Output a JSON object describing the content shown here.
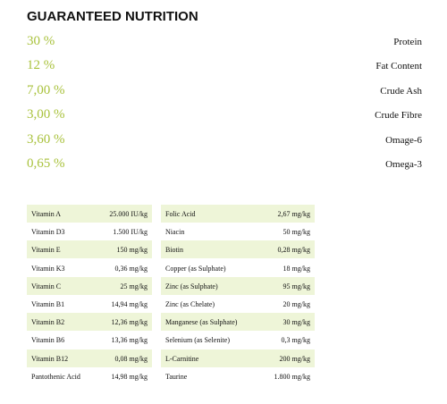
{
  "header": {
    "title": "GUARANTEED NUTRITION"
  },
  "nutrients": [
    {
      "value": "30 %",
      "label": "Protein"
    },
    {
      "value": "12 %",
      "label": "Fat Content"
    },
    {
      "value": "7,00 %",
      "label": "Crude Ash"
    },
    {
      "value": "3,00 %",
      "label": "Crude Fibre"
    },
    {
      "value": "3,60 %",
      "label": "Omage-6"
    },
    {
      "value": "0,65 %",
      "label": "Omega-3"
    }
  ],
  "tables": [
    {
      "rows": [
        [
          "Vitamin A",
          "25.000 IU/kg"
        ],
        [
          "Vitamin D3",
          "1.500 IU/kg"
        ],
        [
          "Vitamin E",
          "150 mg/kg"
        ],
        [
          "Vitamin K3",
          "0,36 mg/kg"
        ],
        [
          "Vitamin C",
          "25 mg/kg"
        ],
        [
          "Vitamin B1",
          "14,94 mg/kg"
        ],
        [
          "Vitamin B2",
          "12,36 mg/kg"
        ],
        [
          "Vitamin B6",
          "13,36 mg/kg"
        ],
        [
          "Vitamin B12",
          "0,08 mg/kg"
        ],
        [
          "Pantothenic Acid",
          "14,98 mg/kg"
        ]
      ]
    },
    {
      "rows": [
        [
          "Folic Acid",
          "2,67 mg/kg"
        ],
        [
          "Niacin",
          "50 mg/kg"
        ],
        [
          "Biotin",
          "0,28 mg/kg"
        ],
        [
          "Copper (as Sulphate)",
          "18 mg/kg"
        ],
        [
          "Zinc (as Sulphate)",
          "95 mg/kg"
        ],
        [
          "Zinc (as Chelate)",
          "20 mg/kg"
        ],
        [
          "Manganese (as Sulphate)",
          "30 mg/kg"
        ],
        [
          "Selenium (as Selenite)",
          "0,3 mg/kg"
        ],
        [
          "L-Carnitine",
          "200 mg/kg"
        ],
        [
          "Taurine",
          "1.800 mg/kg"
        ]
      ]
    }
  ]
}
